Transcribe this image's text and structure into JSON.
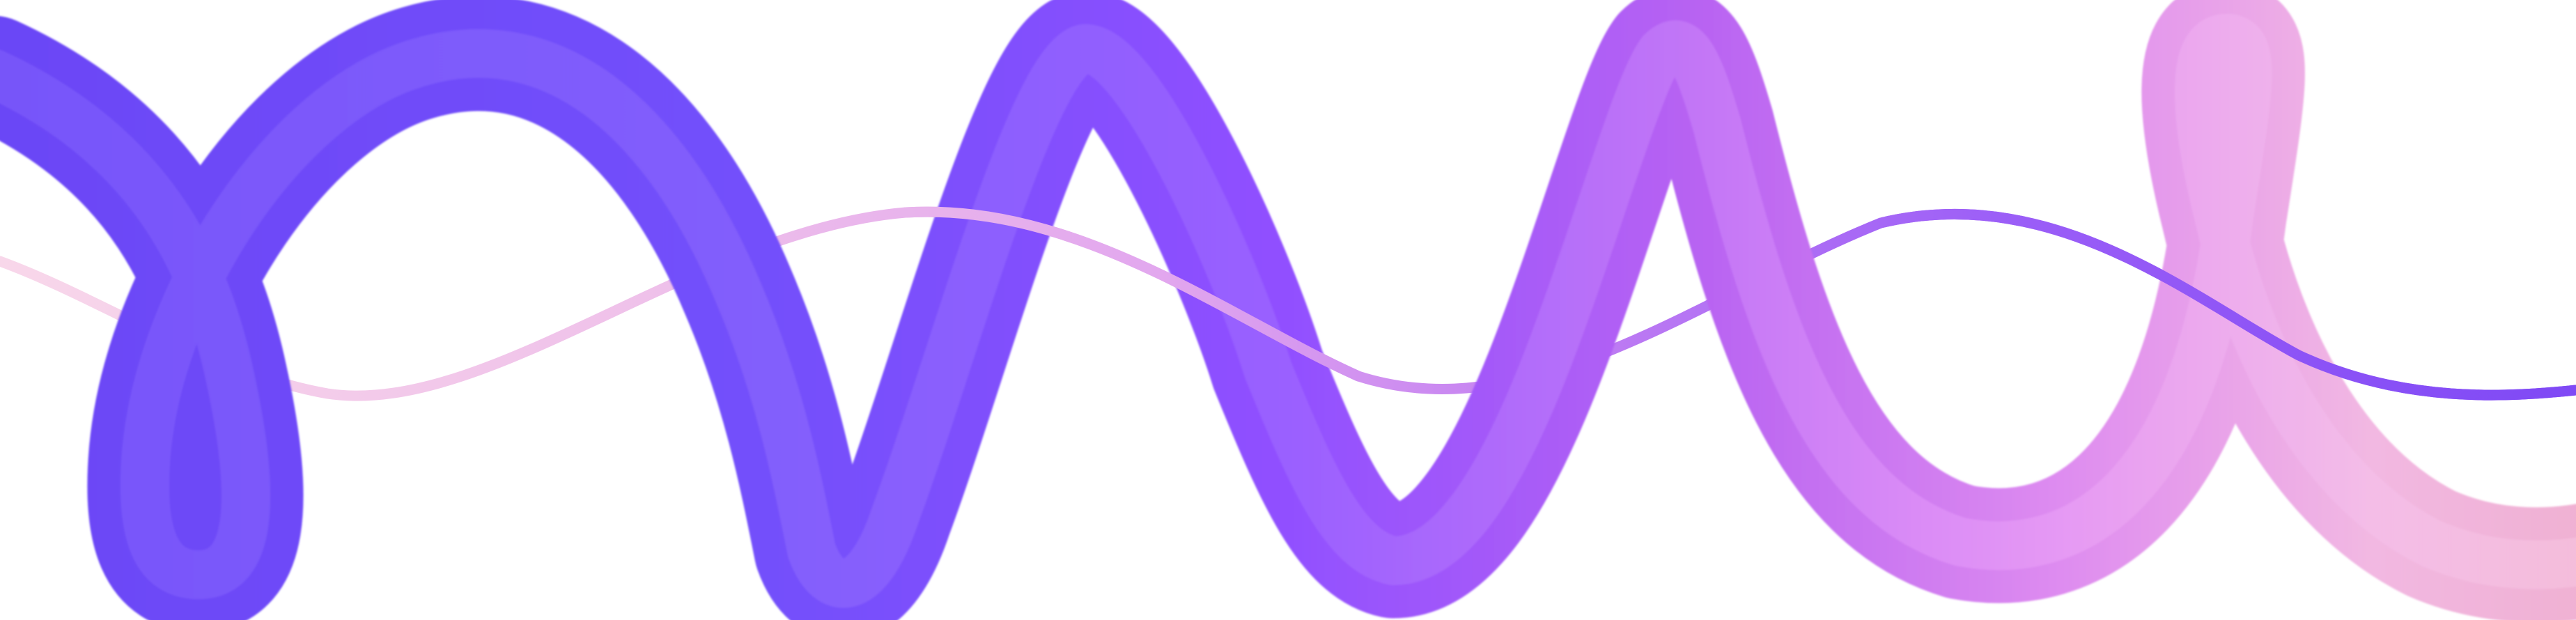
{
  "artwork": {
    "subject": "3D ribbon wave",
    "colors": {
      "background": "#ffffff",
      "tube_indigo": "#6b46f6",
      "tube_violet": "#8f4cff",
      "tube_purple": "#b05bf3",
      "tube_orchid": "#d783f1",
      "tube_pink": "#f2b7de",
      "thin_line_pink": "#f3c5e3",
      "thin_line_violet": "#8a4ef6"
    }
  }
}
